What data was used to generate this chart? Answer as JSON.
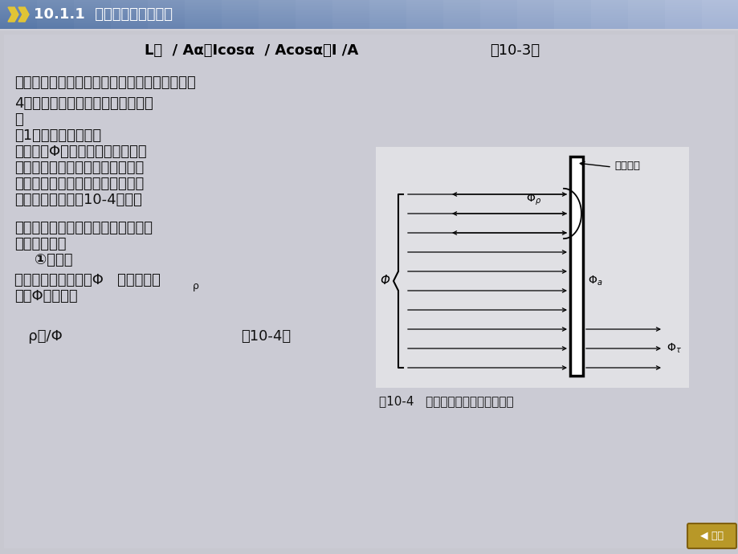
{
  "bg_color": "#d0d0d8",
  "header_bg_left": "#5878a8",
  "header_bg_right": "#a8b8d8",
  "header_text": "10.1.1  照明技术的有关概念",
  "formula_line": "L＝  / Aα＝Icosα  / Acosα＝I /A",
  "formula_ref": "（10-3）",
  "line1": "可见，发光体的亮度值实际上与视线方向无关。",
  "line2": "4．物体的光照性能和光源的显色性",
  "line3": "能",
  "line4": "（1）物体的光照性能",
  "line5": "当光通量Φ投射到物体上时，一部",
  "line6": "分光通从物体反射回去，一部分光",
  "line7": "通被物体吸收，而余下一部分光通",
  "line8": "则透过物体，如图10-4所示。",
  "line9": "为了表征物体的光照性能，引入了以",
  "line10": "下三个参数：",
  "line11": "    ①反射比",
  "line12": "是指反射光的光通量Φ   与总投射光",
  "line12b": "ρ",
  "line13": "通量Φ之比，即",
  "formula2a": "   ρ＝/Φ",
  "formula2b": "（10-4）",
  "fig_caption": "图10-4   光通量投射到物体上的情况",
  "fig_label_shou": "受照物体",
  "fig_label_phi": "Φ",
  "fig_label_phi_rho": "Φρ",
  "fig_label_phi_a": "Φa",
  "fig_label_phi_t": "Φτ",
  "text_color": "#111111",
  "formula_color": "#000000",
  "btn_label": "◀ 返回"
}
